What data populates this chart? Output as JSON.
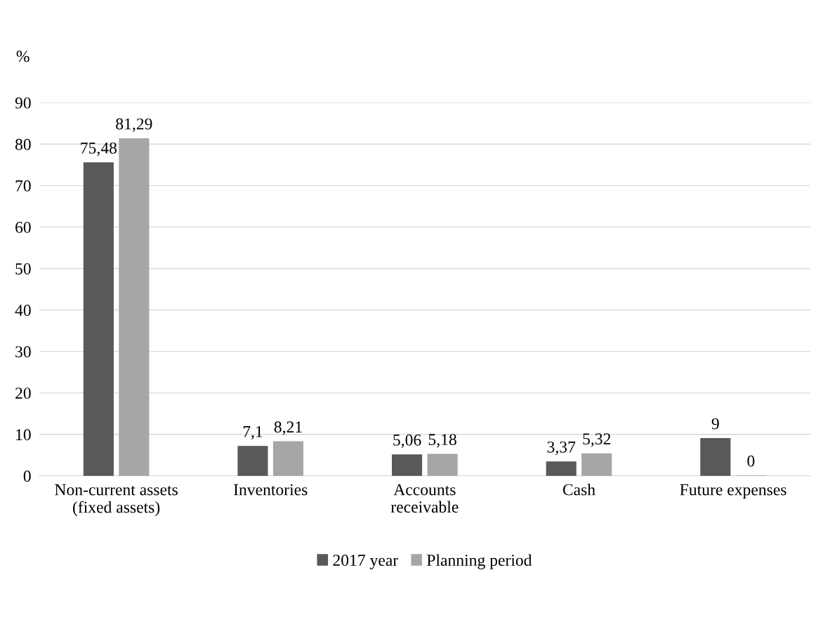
{
  "chart_data": {
    "type": "bar",
    "ylabel": "%",
    "categories": [
      "Non-current assets\n(fixed assets)",
      "Inventories",
      "Accounts\nreceivable",
      "Cash",
      "Future expenses"
    ],
    "series": [
      {
        "name": "2017 year",
        "color": "#595959",
        "values": [
          75.48,
          7.1,
          5.06,
          3.37,
          9
        ],
        "value_labels": [
          "75,48",
          "7,1",
          "5,06",
          "3,37",
          "9"
        ]
      },
      {
        "name": "Planning period",
        "color": "#a6a6a6",
        "values": [
          81.29,
          8.21,
          5.18,
          5.32,
          0
        ],
        "value_labels": [
          "81,29",
          "8,21",
          "5,18",
          "5,32",
          "0"
        ]
      }
    ],
    "ylim": [
      0,
      90
    ],
    "yticks": [
      0,
      10,
      20,
      30,
      40,
      50,
      60,
      70,
      80,
      90
    ],
    "grid": "y",
    "legend": "bottom"
  }
}
